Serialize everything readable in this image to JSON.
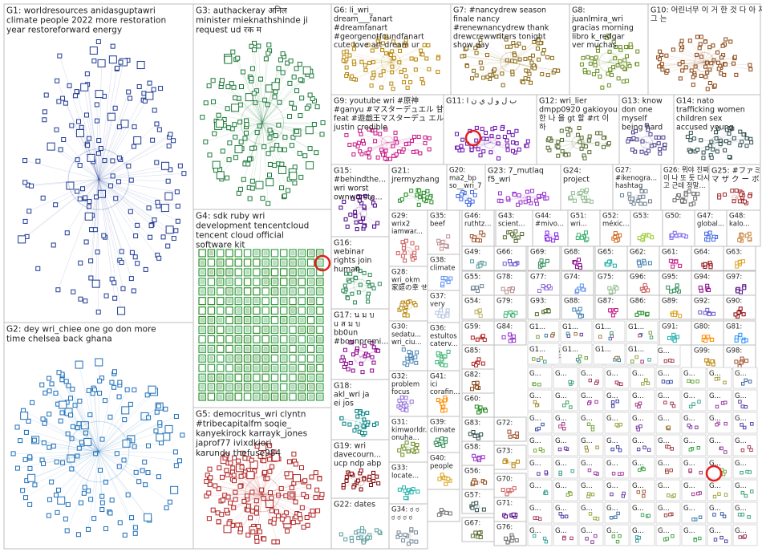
{
  "groups": [
    {
      "id": "G1",
      "label": "G1: worldresources anidasguptawri climate people 2022 more restoration year restoreforward energy",
      "color": "#1f3a93"
    },
    {
      "id": "G2",
      "label": "G2: dey wri_chiee one go don more time chelsea back ghana",
      "color": "#1e6fb8"
    },
    {
      "id": "G3",
      "label": "G3: authackeray अनिल minister mieknathshinde ji request ud रक म",
      "color": "#1d7a3a"
    },
    {
      "id": "G4",
      "label": "G4: sdk ruby wri development tencentcloud tencent cloud official software kit",
      "color": "#2f8f2f"
    },
    {
      "id": "G5",
      "label": "G5: democritus_wri clyntn #tribecapitalfm soqie_ kanyekirock karrayk_jones japrof77 ivixdkiori karundu thefuse984",
      "color": "#b22222"
    },
    {
      "id": "G6",
      "label": "G6: li_wri_ dream___fanart #dreamfanart #georgenotfoundfanart cute love art dream ur red",
      "color": "#b8860b"
    },
    {
      "id": "G7",
      "label": "G7: #nancydrew season finale nancy #renewnancydrew thank drewcrewwriters tonight show day",
      "color": "#8b6914"
    },
    {
      "id": "G8",
      "label": "G8: juanlmira_wri gracias morning libro k_redgar ver muchas reyesraul1974 gusta dejo",
      "color": "#6b8e23"
    },
    {
      "id": "G10",
      "label": "G10: 어린너무 이 거 한 것 다 아 저 그 는",
      "color": "#8b4513"
    },
    {
      "id": "G9",
      "label": "G9: youtube wri #原神 #ganyu #マスターデュエル 甘 雨 feat #遊戯王マスターデュ エル justin credible",
      "color": "#c71585"
    },
    {
      "id": "G11",
      "label": "G11: ب ل و ل ي ن ا",
      "color": "#6a0dad"
    },
    {
      "id": "G12",
      "label": "G12: wri_lier dmpp0920 gakioyou 한 나 을 gt 할 #rt 이 하",
      "color": "#556b2f"
    },
    {
      "id": "G13",
      "label": "G13: know don one myself being hard working bad",
      "color": "#483d8b"
    },
    {
      "id": "G14",
      "label": "G14: nato trafficking women children sex accused young keep...",
      "color": "#2f4f4f"
    },
    {
      "id": "G15",
      "label": "G15: #behindthe... wri worst ownworste... enemy philm_mak...",
      "color": "#4b0082"
    },
    {
      "id": "G16",
      "label": "G16: webinar rights join human environment africa unep...",
      "color": "#2e8b57"
    },
    {
      "id": "G17",
      "label": "G17: น ม บ u ส ม บ bb0un #bounpremi... premspace...",
      "color": "#8b008b"
    },
    {
      "id": "G18",
      "label": "G18: akl_wri ja ei jos conscientio... iltalehti_fi warresister...",
      "color": "#008080"
    },
    {
      "id": "G19",
      "label": "G19: wri davecourn... ucp ndp abp angus reid poll alberta...",
      "color": "#800000"
    },
    {
      "id": "G20",
      "label": "G20: ma2_bp so__wri_7 shake_0818 kaitomm0...",
      "color": "#4169e1"
    },
    {
      "id": "G21",
      "label": "G21: jrermyzhang soliiaooo firstfist9...",
      "color": "#228b22"
    },
    {
      "id": "G22",
      "label": "G22: dates",
      "color": "#5f9ea0"
    },
    {
      "id": "G23",
      "label": "G23: 7_mutlaq f5_wri jfa_yam...",
      "color": "#9932cc"
    },
    {
      "id": "G24",
      "label": "G24: project goals addition...",
      "color": "#8fbc8f"
    },
    {
      "id": "G25",
      "label": "G25: #ファミ マ ザ ク ー ボ ン フ ェ ス 月 y_wri 開...",
      "color": "#a52a2a"
    },
    {
      "id": "G26",
      "label": "G26: 뭐야 진짜 이 나 또 듯 다시 고 근데 정말...",
      "color": "#696969"
    },
    {
      "id": "G27",
      "label": "G27: #ikenogra... hashtag mark...",
      "color": "#708090"
    },
    {
      "id": "G28",
      "label": "G28: wri_okm 家庭の幸 せ を 詠 め...",
      "color": "#b8860b"
    },
    {
      "id": "G29",
      "label": "G29: wrix2 iamwar... cnetale...",
      "color": "#cd5c5c"
    },
    {
      "id": "G30",
      "label": "G30: sedatu... wri_ciu... montea...",
      "color": "#4682b4"
    },
    {
      "id": "G31",
      "label": "G31: kimworldr... onuha... signal... 2016 won...",
      "color": "#6b8e23"
    },
    {
      "id": "G32",
      "label": "G32: problem focus mind...",
      "color": "#9370db"
    },
    {
      "id": "G33",
      "label": "G33: locate...",
      "color": "#20b2aa"
    },
    {
      "id": "G34",
      "label": "G34: ಠ ಠ ಠ ಠ ಠ ಠ",
      "color": "#778899"
    },
    {
      "id": "G35",
      "label": "G35: beef drives...",
      "color": "#bc8f8f"
    },
    {
      "id": "G36",
      "label": "G36: estultos caterv...",
      "color": "#3cb371"
    },
    {
      "id": "G37",
      "label": "G37: very large...",
      "color": "#b0c4de"
    },
    {
      "id": "G38",
      "label": "G38: climate report...",
      "color": "#6495ed"
    },
    {
      "id": "G39",
      "label": "G39: climate defore...",
      "color": "#2e8b57"
    },
    {
      "id": "G40",
      "label": "G40: people unbio...",
      "color": "#daa520"
    },
    {
      "id": "G41",
      "label": "G41: ici corafin... voulez...",
      "color": "#ff8c00"
    },
    {
      "id": "G43",
      "label": "G43: scient...",
      "color": "#556b2f"
    },
    {
      "id": "G44",
      "label": "G44: #mivo...",
      "color": "#8a2be2"
    },
    {
      "id": "G46",
      "label": "G46: ruthtz...",
      "color": "#a0522d"
    },
    {
      "id": "G47",
      "label": "G47: global...",
      "color": "#4169e1"
    },
    {
      "id": "G48",
      "label": "G48: kalo...",
      "color": "#cd853f"
    },
    {
      "id": "G49",
      "label": "G49: wri_ niko...",
      "color": "#5f9ea0"
    },
    {
      "id": "G50",
      "label": "G50:",
      "color": "#7b68ee"
    },
    {
      "id": "G51",
      "label": "G51: wri...",
      "color": "#3cb371"
    },
    {
      "id": "G52",
      "label": "G52: méxic...",
      "color": "#d2691e"
    },
    {
      "id": "G53",
      "label": "G53:",
      "color": "#9acd32"
    },
    {
      "id": "G54",
      "label": "G54: ever hop...",
      "color": "#bdb76b"
    },
    {
      "id": "G55",
      "label": "G55: step 107...",
      "color": "#708090"
    },
    {
      "id": "G56",
      "label": "G56: food...",
      "color": "#8b4513"
    },
    {
      "id": "G57",
      "label": "G57:",
      "color": "#2f4f4f"
    },
    {
      "id": "G58",
      "label": "G58: bub...",
      "color": "#9932cc"
    },
    {
      "id": "G59",
      "label": "G59: priv...",
      "color": "#b22222"
    },
    {
      "id": "G60",
      "label": "G60: ener...",
      "color": "#228b22"
    },
    {
      "id": "G61",
      "label": "G61: 新作...",
      "color": "#c71585"
    },
    {
      "id": "G62",
      "label": "G62: scho...",
      "color": "#4682b4"
    },
    {
      "id": "G63",
      "label": "G63: alian...",
      "color": "#daa520"
    },
    {
      "id": "G64",
      "label": "G64: carni...",
      "color": "#8b0000"
    },
    {
      "id": "G65",
      "label": "G65: ...",
      "color": "#20b2aa"
    },
    {
      "id": "G66",
      "label": "G66: zero...",
      "color": "#6a5acd"
    },
    {
      "id": "G67",
      "label": "G67:",
      "color": "#556b2f"
    },
    {
      "id": "G68",
      "label": "G68: wri...",
      "color": "#8b008b"
    },
    {
      "id": "G69",
      "label": "G69: méxi...",
      "color": "#2e8b57"
    },
    {
      "id": "G70",
      "label": "G70: fight...",
      "color": "#cd5c5c"
    },
    {
      "id": "G71",
      "label": "G71:",
      "color": "#4b0082"
    },
    {
      "id": "G72",
      "label": "G72: con...",
      "color": "#a0522d"
    },
    {
      "id": "G73",
      "label": "G73: 毎日...",
      "color": "#b8860b"
    },
    {
      "id": "G74",
      "label": "G74: indo...",
      "color": "#6495ed"
    },
    {
      "id": "G75",
      "label": "G75: rule...",
      "color": "#8fbc8f"
    },
    {
      "id": "G76",
      "label": "G76: pri...",
      "color": "#696969"
    },
    {
      "id": "G77",
      "label": "G77: em...",
      "color": "#9370db"
    },
    {
      "id": "G78",
      "label": "G78: ...",
      "color": "#bc8f8f"
    },
    {
      "id": "G79",
      "label": "G79: sen...",
      "color": "#3cb371"
    },
    {
      "id": "G80",
      "label": "G80: low...",
      "color": "#ff8c00"
    },
    {
      "id": "G81",
      "label": "G81: ...",
      "color": "#1e90ff"
    },
    {
      "id": "G82",
      "label": "G82: excit...",
      "color": "#8b4513"
    },
    {
      "id": "G83",
      "label": "G83: indo...",
      "color": "#2f4f4f"
    },
    {
      "id": "G84",
      "label": "G84: wri...",
      "color": "#9932cc"
    },
    {
      "id": "G85",
      "label": "G85: febr...",
      "color": "#b22222"
    },
    {
      "id": "G86",
      "label": "G86: sen...",
      "color": "#228b22"
    },
    {
      "id": "G87",
      "label": "G87:",
      "color": "#c71585"
    },
    {
      "id": "G88",
      "label": "G88:",
      "color": "#4682b4"
    },
    {
      "id": "G89",
      "label": "G89:",
      "color": "#daa520"
    },
    {
      "id": "G90",
      "label": "G90:",
      "color": "#8b0000"
    },
    {
      "id": "G91",
      "label": "G91:",
      "color": "#20b2aa"
    },
    {
      "id": "G92",
      "label": "G92:",
      "color": "#6a5acd"
    },
    {
      "id": "G93",
      "label": "G93:",
      "color": "#556b2f"
    },
    {
      "id": "G94",
      "label": "G94: wri...",
      "color": "#8b008b"
    },
    {
      "id": "G95",
      "label": "G95: org...",
      "color": "#2e8b57"
    },
    {
      "id": "G96",
      "label": "G96: cor...",
      "color": "#cd5c5c"
    },
    {
      "id": "G97",
      "label": "G97: gov...",
      "color": "#4b0082"
    },
    {
      "id": "G98",
      "label": "G98:",
      "color": "#a0522d"
    },
    {
      "id": "G99",
      "label": "G99:",
      "color": "#b8860b"
    }
  ],
  "small_cell_label": "G...",
  "tiny_cell_label": "G1..."
}
